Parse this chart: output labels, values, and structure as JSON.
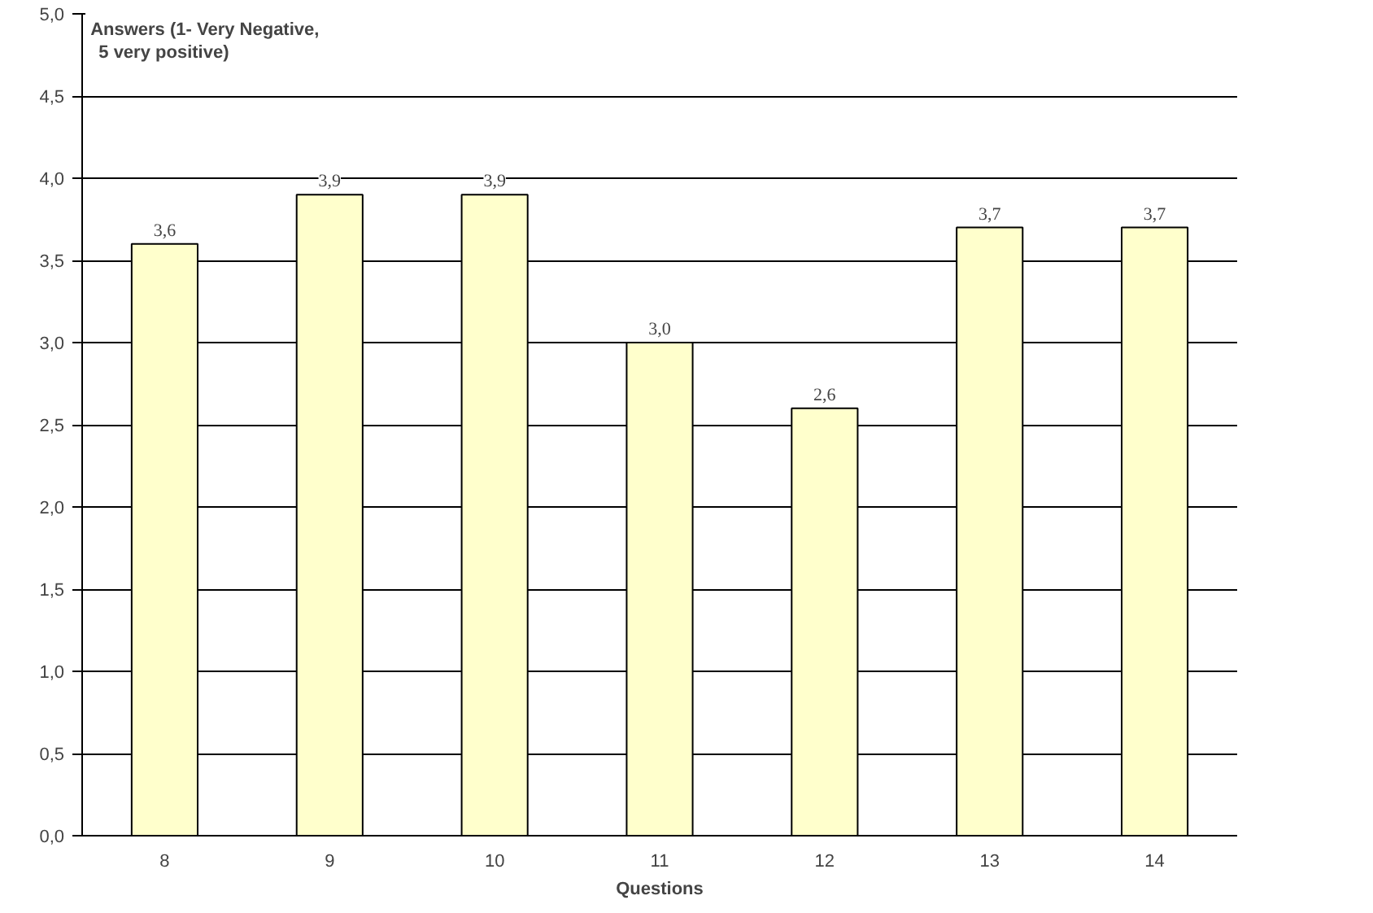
{
  "chart_data": {
    "type": "bar",
    "title": "Answers (1- Very Negative,\n5 very positive)",
    "xlabel": "Questions",
    "categories": [
      "8",
      "9",
      "10",
      "11",
      "12",
      "13",
      "14"
    ],
    "values": [
      3.6,
      3.9,
      3.9,
      3.0,
      2.6,
      3.7,
      3.7
    ],
    "value_labels": [
      "3,6",
      "3,9",
      "3,9",
      "3,0",
      "2,6",
      "3,7",
      "3,7"
    ],
    "color": "#ffffcc",
    "ylim": [
      0,
      5
    ],
    "yticks": [
      {
        "value": 0,
        "label": "0,0"
      },
      {
        "value": 0.5,
        "label": "0,5"
      },
      {
        "value": 1,
        "label": "1,0"
      },
      {
        "value": 1.5,
        "label": "1,5"
      },
      {
        "value": 2,
        "label": "2,0"
      },
      {
        "value": 2.5,
        "label": "2,5"
      },
      {
        "value": 3,
        "label": "3,0"
      },
      {
        "value": 3.5,
        "label": "3,5"
      },
      {
        "value": 4,
        "label": "4,0"
      },
      {
        "value": 4.5,
        "label": "4,5"
      },
      {
        "value": 5,
        "label": "5,0"
      }
    ],
    "grid": "y"
  }
}
